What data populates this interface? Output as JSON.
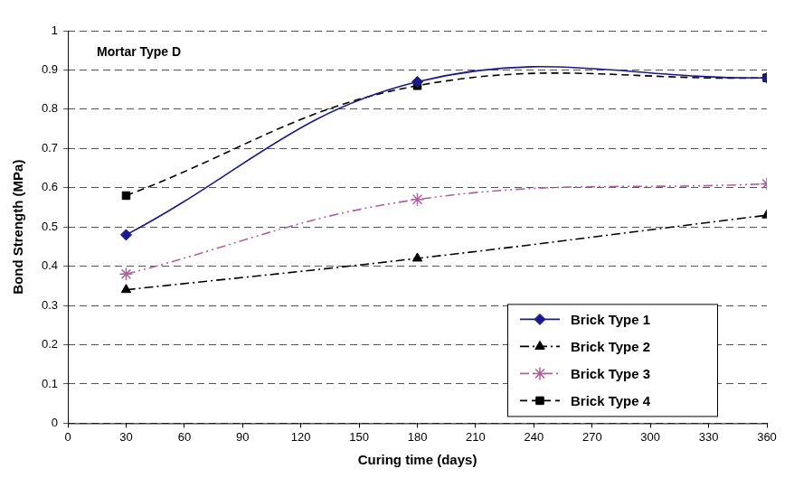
{
  "chart_data": {
    "type": "line",
    "x_label": "Curing time (days)",
    "y_label": "Bond Strength (MPa)",
    "annotations": [
      "Mortar Type D"
    ],
    "x": [
      30,
      180,
      360
    ],
    "series": [
      {
        "name": "Brick Type 1",
        "color": "#1a1a8c",
        "marker": "diamond",
        "line_style": "solid",
        "values": [
          0.48,
          0.87,
          0.88
        ]
      },
      {
        "name": "Brick Type 2",
        "color": "#000000",
        "marker": "triangle",
        "line_style": "dashdot",
        "values": [
          0.34,
          0.42,
          0.53
        ]
      },
      {
        "name": "Brick Type 3",
        "color": "#b0609e",
        "marker": "star",
        "line_style": "dashdotdot",
        "values": [
          0.38,
          0.57,
          0.61
        ]
      },
      {
        "name": "Brick Type 4",
        "color": "#000000",
        "marker": "square",
        "line_style": "dashed",
        "values": [
          0.58,
          0.86,
          0.88
        ]
      }
    ],
    "xlim": [
      0,
      360
    ],
    "xticks": [
      0,
      30,
      60,
      90,
      120,
      150,
      180,
      210,
      240,
      270,
      300,
      330,
      360
    ],
    "ylim": [
      0,
      1
    ],
    "yticks": [
      0,
      0.1,
      0.2,
      0.3,
      0.4,
      0.5,
      0.6,
      0.7,
      0.8,
      0.9,
      1
    ],
    "grid": true,
    "legend": "lower right"
  }
}
